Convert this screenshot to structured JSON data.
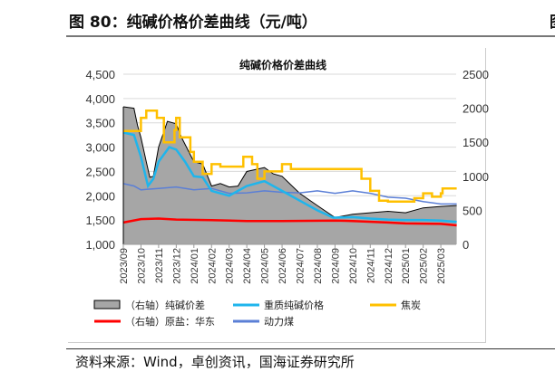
{
  "header": {
    "title": "图 80：纯碱价格价差曲线（元/吨）",
    "clipped_right": "图"
  },
  "source": "资料来源：Wind，卓创资讯，国海证券研究所",
  "colors": {
    "spread": "#a6a6a6",
    "soda": "#1fb5ec",
    "coke": "#ffc000",
    "salt": "#ff0000",
    "coal": "#5b7fd6"
  },
  "chart_data": {
    "type": "line",
    "title": "纯碱价格价差曲线",
    "categories": [
      "2023/09",
      "2023/10",
      "2023/11",
      "2023/12",
      "2024/01",
      "2024/02",
      "2024/03",
      "2024/04",
      "2024/05",
      "2024/06",
      "2024/07",
      "2024/08",
      "2024/09",
      "2024/10",
      "2024/11",
      "2024/12",
      "2025/01",
      "2025/02",
      "2025/03"
    ],
    "ylim_left": [
      1000,
      4500
    ],
    "yticks_left": [
      "1,000",
      "1,500",
      "2,000",
      "2,500",
      "3,000",
      "3,500",
      "4,000",
      "4,500"
    ],
    "ylim_right": [
      0,
      2500
    ],
    "yticks_right": [
      "0",
      "500",
      "1000",
      "1500",
      "2000",
      "2500"
    ],
    "legend": [
      "（右轴）纯碱价差",
      "重质纯碱价格",
      "焦炭",
      "（右轴）原盐：华东",
      "动力煤"
    ],
    "series": [
      {
        "name": "（右轴）纯碱价差",
        "axis": "right",
        "kind": "area",
        "x": [
          0,
          0.6,
          0.8,
          1,
          1.3,
          1.5,
          1.7,
          2,
          2.5,
          3,
          3.3,
          4,
          4.5,
          5,
          5.5,
          6,
          6.5,
          7,
          8,
          8.5,
          9,
          10,
          11,
          12,
          13,
          14,
          15,
          16,
          17,
          18,
          18.9
        ],
        "values": [
          2021,
          2000,
          1750,
          1571,
          1214,
          986,
          1000,
          1429,
          1807,
          1771,
          1571,
          1214,
          1179,
          857,
          893,
          843,
          857,
          1071,
          1129,
          1036,
          1000,
          750,
          571,
          393,
          443,
          464,
          486,
          464,
          536,
          557,
          571
        ]
      },
      {
        "name": "重质纯碱价格",
        "axis": "left",
        "x": [
          0,
          0.6,
          1,
          1.4,
          1.7,
          2,
          2.6,
          3,
          3.5,
          4,
          4.5,
          5,
          6,
          7,
          8,
          9,
          10,
          11,
          11.9,
          13,
          14,
          15,
          16,
          17,
          18,
          18.9
        ],
        "values": [
          3300,
          3250,
          2800,
          2200,
          2350,
          2700,
          3000,
          2950,
          2700,
          2400,
          2380,
          2100,
          2000,
          2200,
          2300,
          2100,
          1900,
          1700,
          1550,
          1560,
          1530,
          1510,
          1500,
          1500,
          1490,
          1460
        ]
      },
      {
        "name": "焦炭",
        "axis": "left",
        "step": true,
        "x": [
          0,
          0.8,
          1,
          1.3,
          1.9,
          2.3,
          2.9,
          3,
          3.2,
          3.8,
          4,
          4.5,
          5,
          5.5,
          6.5,
          6.8,
          7.3,
          7.6,
          8,
          9,
          9.5,
          13,
          13.5,
          14,
          14.5,
          15,
          16,
          16.5,
          17,
          17.5,
          18,
          18.1,
          18.9
        ],
        "values": [
          3330,
          3330,
          3600,
          3750,
          3600,
          3100,
          3350,
          3600,
          3200,
          2900,
          2700,
          2450,
          2650,
          2600,
          2600,
          2800,
          2650,
          2350,
          2500,
          2650,
          2550,
          2550,
          2350,
          2100,
          1900,
          1880,
          1880,
          1950,
          2050,
          1980,
          2050,
          2150,
          2150
        ]
      },
      {
        "name": "（右轴）原盐：华东",
        "axis": "right",
        "x": [
          0,
          1,
          2,
          3,
          5,
          7,
          9,
          12,
          13,
          15,
          16,
          18,
          18.9
        ],
        "values": [
          321,
          371,
          379,
          364,
          357,
          343,
          343,
          350,
          343,
          321,
          307,
          300,
          279
        ]
      },
      {
        "name": "动力煤",
        "axis": "left",
        "x": [
          0,
          0.6,
          1,
          1.3,
          2,
          3,
          4,
          5,
          6,
          7,
          8,
          9,
          10,
          11,
          12,
          13,
          14,
          15,
          16,
          17,
          18,
          18.9
        ],
        "values": [
          2250,
          2200,
          2120,
          2130,
          2150,
          2180,
          2120,
          2150,
          2050,
          2060,
          2100,
          2070,
          2060,
          2100,
          2050,
          2100,
          2050,
          1970,
          1950,
          1880,
          1830,
          1830
        ]
      }
    ]
  }
}
